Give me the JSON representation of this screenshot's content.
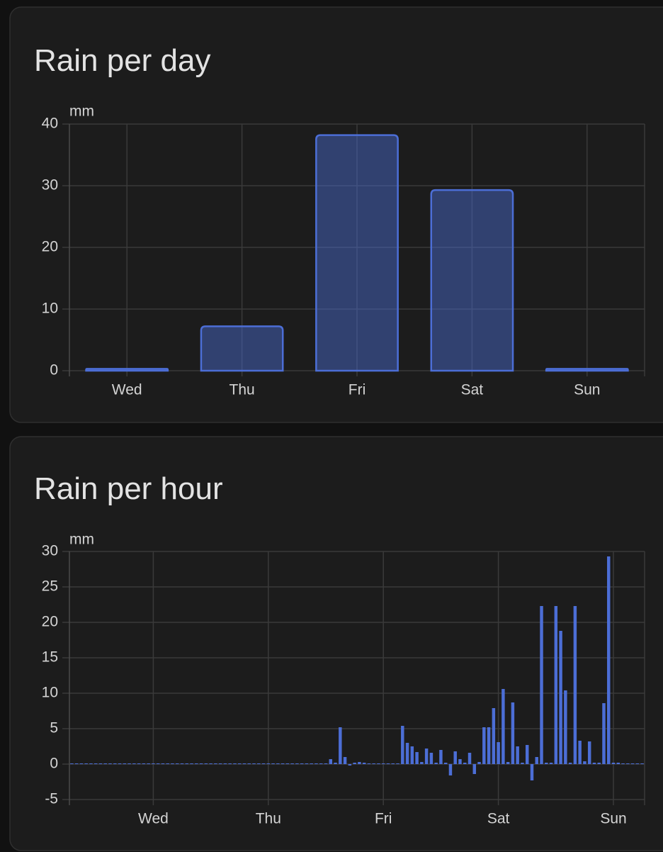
{
  "chart_data": [
    {
      "type": "bar",
      "title": "Rain per day",
      "y_unit": "mm",
      "categories": [
        "Wed",
        "Thu",
        "Fri",
        "Sat",
        "Sun"
      ],
      "values": [
        0.3,
        7.2,
        38.2,
        29.3,
        0.3
      ],
      "color": "#4c6ed6",
      "ylim": [
        0,
        40
      ],
      "yticks": [
        0,
        10,
        20,
        30,
        40
      ],
      "grid": true
    },
    {
      "type": "bar",
      "title": "Rain per hour",
      "y_unit": "mm",
      "categories": [
        null,
        null,
        null,
        null,
        null,
        null,
        null,
        null,
        null,
        null,
        null,
        null,
        null,
        null,
        null,
        null,
        null,
        "Wed",
        null,
        null,
        null,
        null,
        null,
        null,
        null,
        null,
        null,
        null,
        null,
        null,
        null,
        null,
        null,
        null,
        null,
        null,
        null,
        null,
        null,
        null,
        null,
        "Thu",
        null,
        null,
        null,
        null,
        null,
        null,
        null,
        null,
        null,
        null,
        null,
        null,
        null,
        null,
        null,
        null,
        null,
        null,
        null,
        null,
        null,
        null,
        null,
        "Fri",
        null,
        null,
        null,
        null,
        null,
        null,
        null,
        null,
        null,
        null,
        null,
        null,
        null,
        null,
        null,
        null,
        null,
        null,
        null,
        null,
        null,
        null,
        null,
        "Sat",
        null,
        null,
        null,
        null,
        null,
        null,
        null,
        null,
        null,
        null,
        null,
        null,
        null,
        null,
        null,
        null,
        null,
        null,
        null,
        null,
        null,
        null,
        null,
        "Sun",
        null,
        null,
        null,
        null,
        null,
        null
      ],
      "values": [
        0.1,
        0.1,
        0.1,
        0.1,
        0.1,
        0.1,
        0.1,
        0.1,
        0.1,
        0.1,
        0.1,
        0.1,
        0.1,
        0.1,
        0.1,
        0.1,
        0.1,
        0.1,
        0.1,
        0.1,
        0.1,
        0.1,
        0.1,
        0.1,
        0.1,
        0.1,
        0.1,
        0.1,
        0.1,
        0.1,
        0.1,
        0.1,
        0.1,
        0.1,
        0.1,
        0.1,
        0.1,
        0.1,
        0.1,
        0.1,
        0.1,
        0.1,
        0.1,
        0.1,
        0.1,
        0.1,
        0.1,
        0.1,
        0.1,
        0.1,
        0.1,
        0.1,
        0.1,
        0.1,
        0.7,
        0.2,
        5.2,
        1.0,
        -0.2,
        0.2,
        0.3,
        0.2,
        0.1,
        0.1,
        0.1,
        0.1,
        0.1,
        0.1,
        0.1,
        5.4,
        3.0,
        2.5,
        1.7,
        0.3,
        2.2,
        1.6,
        0.2,
        2.0,
        0.2,
        -1.6,
        1.8,
        0.7,
        0.2,
        1.6,
        -1.4,
        0.3,
        5.2,
        5.2,
        7.9,
        3.1,
        10.6,
        0.3,
        8.7,
        2.5,
        0.2,
        2.7,
        -2.3,
        1.0,
        22.3,
        0.2,
        0.2,
        22.3,
        18.8,
        10.4,
        0.2,
        22.3,
        3.3,
        0.4,
        3.2,
        0.2,
        0.2,
        8.6,
        29.3,
        0.2,
        0.2,
        0.1,
        0.1,
        0.1,
        0.1,
        0.1
      ],
      "color": "#4c6ed6",
      "ylim": [
        -5,
        30
      ],
      "yticks": [
        -5,
        0,
        5,
        10,
        15,
        20,
        25,
        30
      ],
      "grid": true
    }
  ]
}
